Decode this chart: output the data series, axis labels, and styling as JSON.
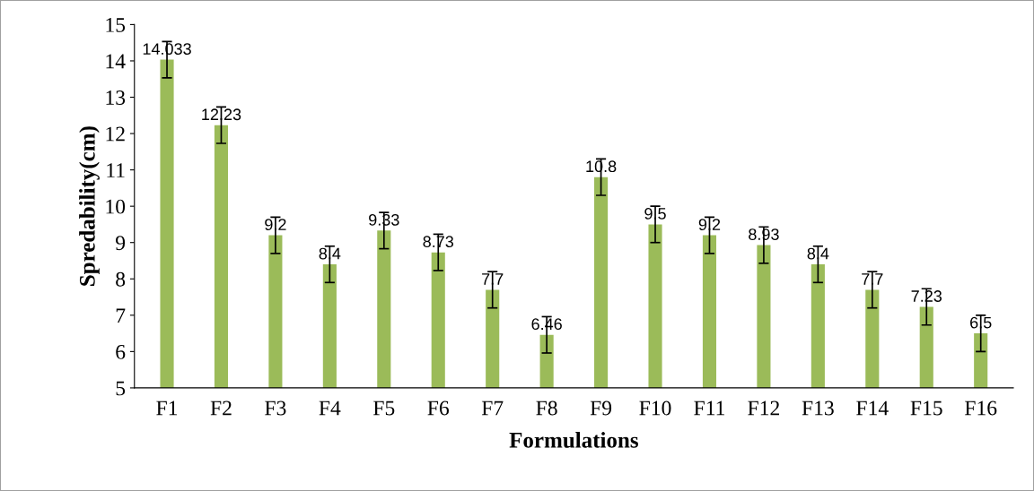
{
  "chart_data": {
    "type": "bar",
    "xlabel": "Formulations",
    "ylabel": "Spredability(cm)",
    "categories": [
      "F1",
      "F2",
      "F3",
      "F4",
      "F5",
      "F6",
      "F7",
      "F8",
      "F9",
      "F10",
      "F11",
      "F12",
      "F13",
      "F14",
      "F15",
      "F16"
    ],
    "series": [
      {
        "color": "#9bbb59",
        "values": [
          14.033,
          12.23,
          9.2,
          8.4,
          9.33,
          8.73,
          7.7,
          6.46,
          10.8,
          9.5,
          9.2,
          8.93,
          8.4,
          7.7,
          7.23,
          6.5
        ],
        "errors": [
          0.5,
          0.5,
          0.5,
          0.5,
          0.5,
          0.5,
          0.5,
          0.5,
          0.5,
          0.5,
          0.5,
          0.5,
          0.5,
          0.5,
          0.5,
          0.5
        ]
      }
    ],
    "ylim": [
      5,
      15
    ],
    "yticks": [
      5,
      6,
      7,
      8,
      9,
      10,
      11,
      12,
      13,
      14,
      15
    ],
    "grid": false,
    "legend": false,
    "data_labels": true
  }
}
